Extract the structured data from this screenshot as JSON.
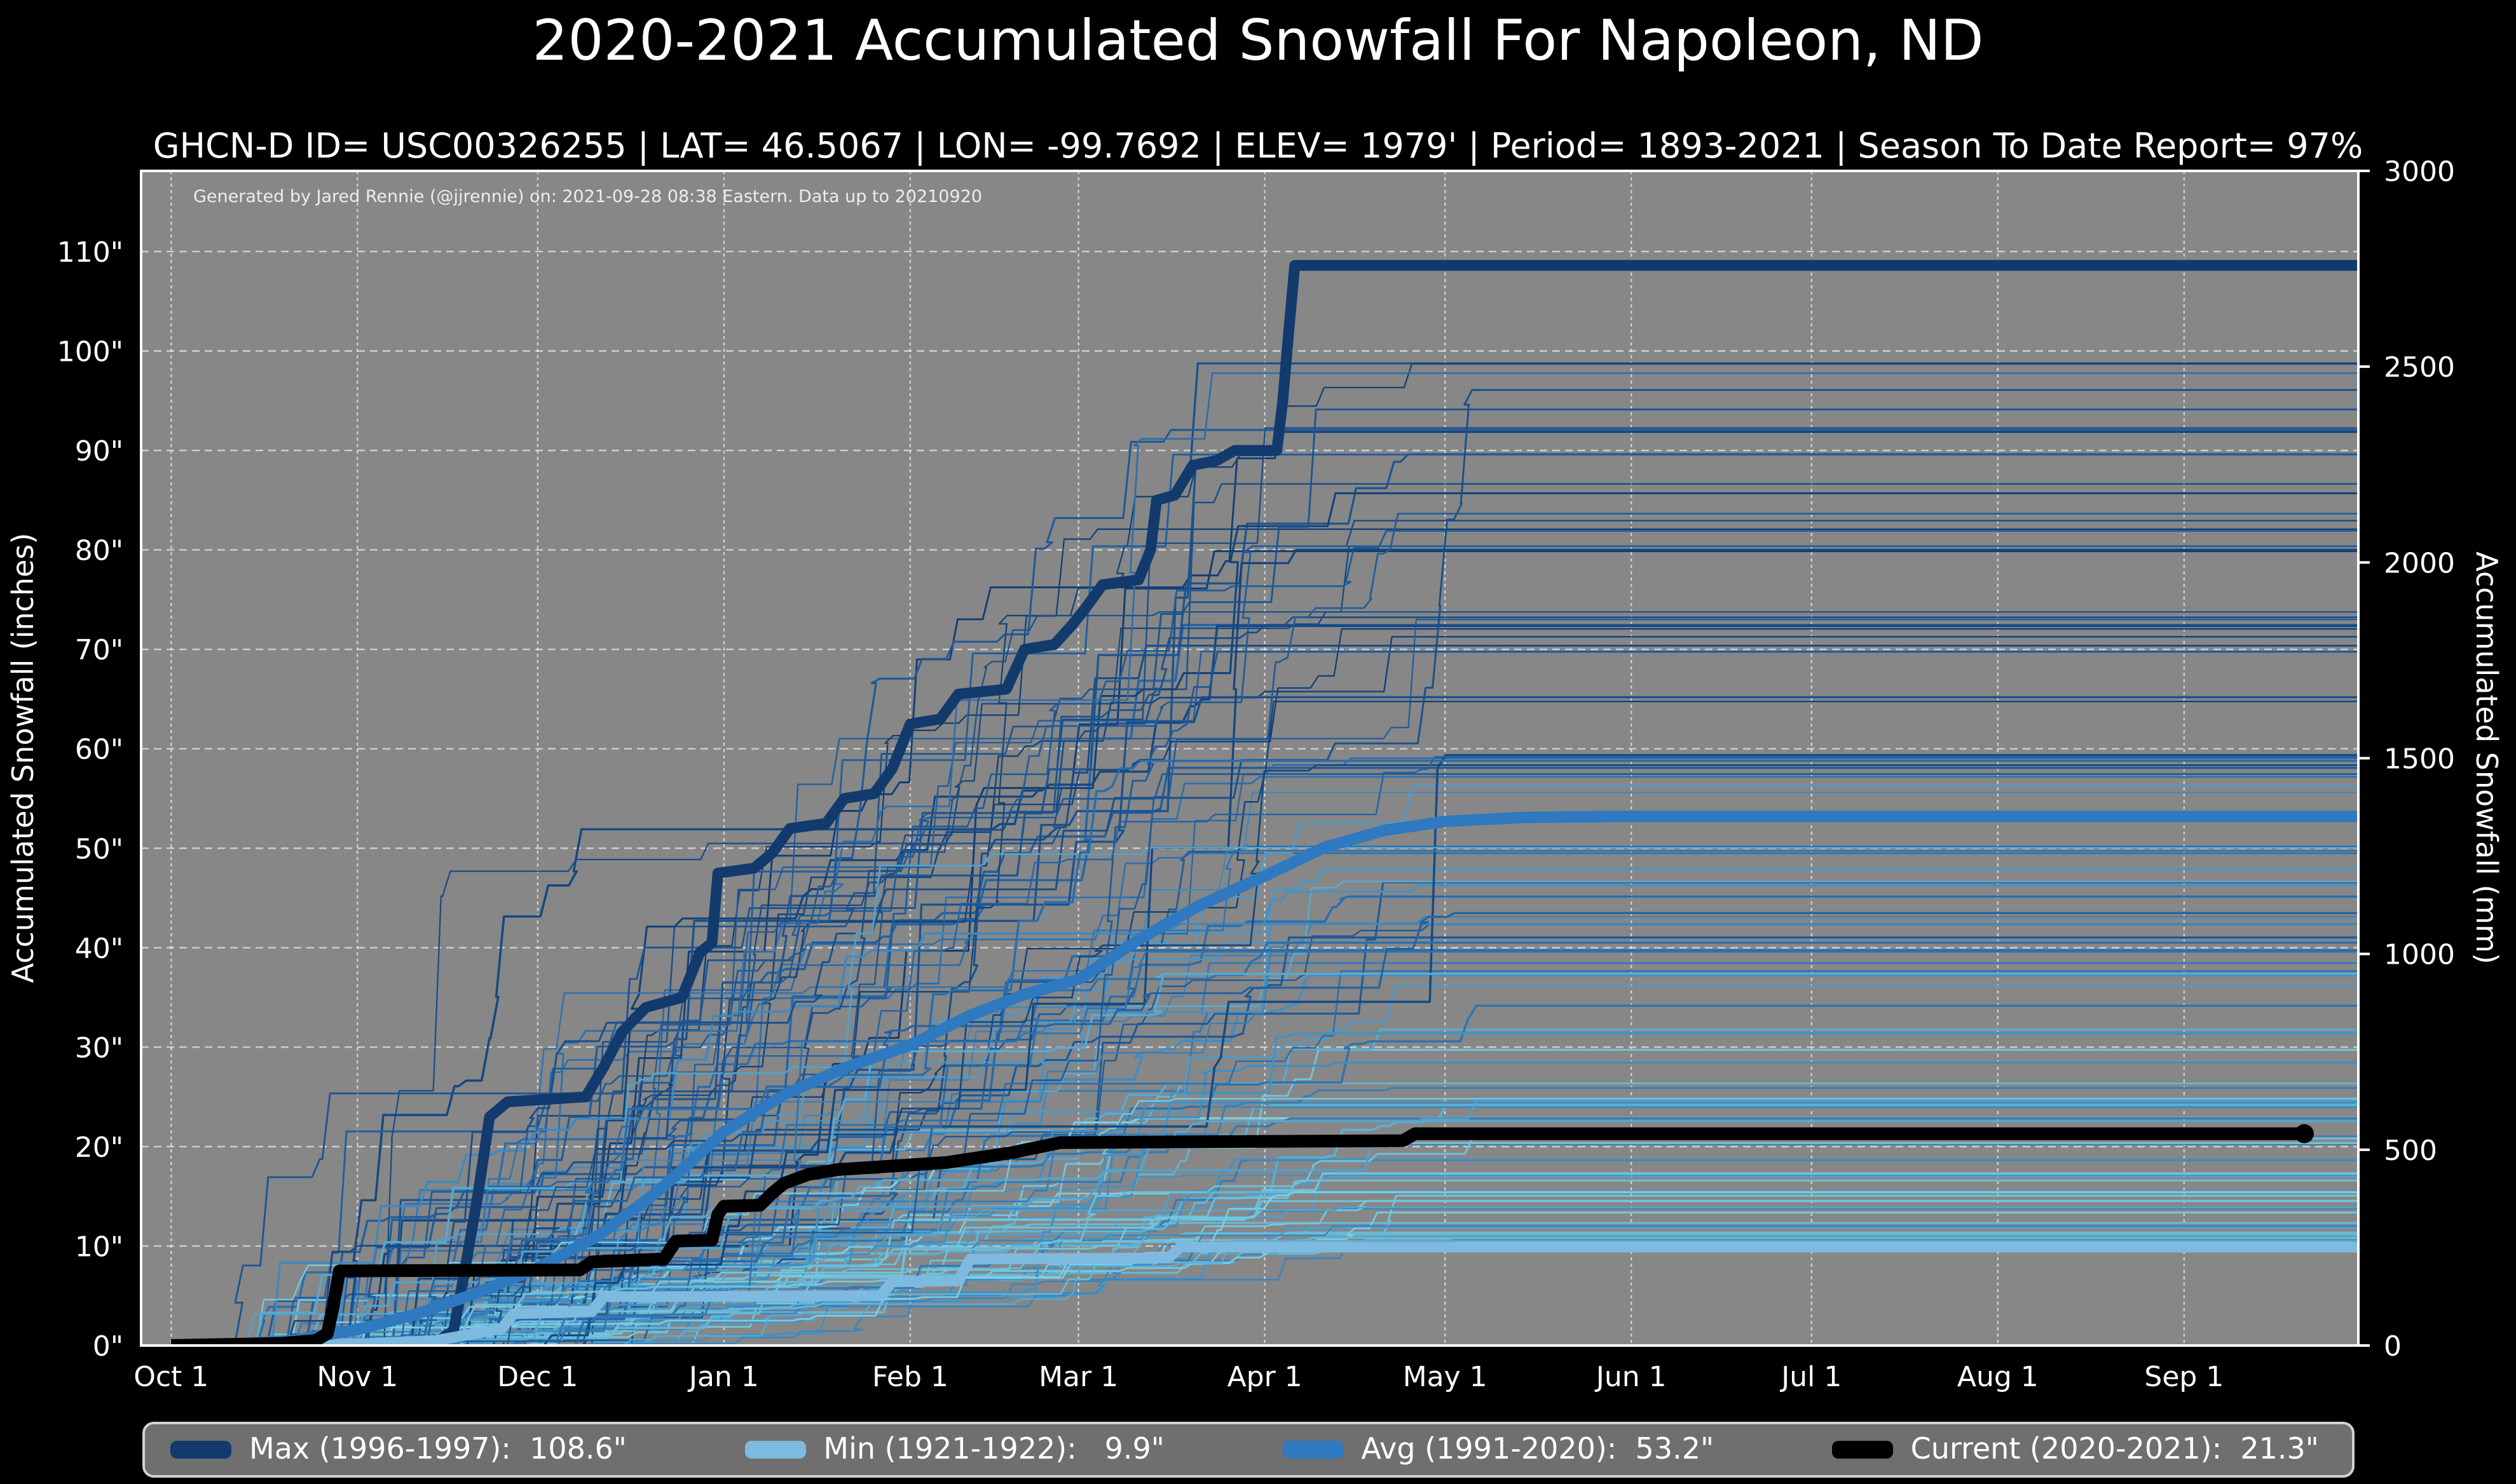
{
  "title": "2020-2021 Accumulated Snowfall For Napoleon, ND",
  "subtitle": "GHCN-D ID= USC00326255 | LAT= 46.5067 | LON= -99.7692 | ELEV= 1979' | Period= 1893-2021 | Season To Date Report= 97%",
  "annotation": "Generated by Jared Rennie (@jjrennie) on: 2021-09-28 08:38 Eastern. Data up to 20210920",
  "axes": {
    "left_label": "Accumulated Snowfall (inches)",
    "right_label": "Accumulated Snowfall (mm)",
    "x_tick_labels": [
      "Oct 1",
      "Nov 1",
      "Dec 1",
      "Jan 1",
      "Feb 1",
      "Mar 1",
      "Apr 1",
      "May 1",
      "Jun 1",
      "Jul 1",
      "Aug 1",
      "Sep 1"
    ],
    "x_tick_days": [
      0,
      31,
      61,
      92,
      123,
      151,
      182,
      212,
      243,
      273,
      304,
      335
    ],
    "x_domain_days": [
      -5,
      364
    ],
    "day_zero": "Oct 1",
    "y_left_tick_labels": [
      "0\"",
      "10\"",
      "20\"",
      "30\"",
      "40\"",
      "50\"",
      "60\"",
      "70\"",
      "80\"",
      "90\"",
      "100\"",
      "110\""
    ],
    "y_left_tick_values": [
      0,
      10,
      20,
      30,
      40,
      50,
      60,
      70,
      80,
      90,
      100,
      110
    ],
    "y_left_domain_inches": [
      0,
      118.11
    ],
    "y_right_tick_labels": [
      "0",
      "500",
      "1000",
      "1500",
      "2000",
      "2500",
      "3000"
    ],
    "y_right_tick_values": [
      0,
      500,
      1000,
      1500,
      2000,
      2500,
      3000
    ],
    "y_right_domain_mm": [
      0,
      3000
    ],
    "grid": true
  },
  "colors": {
    "page_background": "#000000",
    "plot_background": "#878787",
    "grid": "rgba(255,255,255,0.6)",
    "plot_border": "#ffffff",
    "max": "#123a6d",
    "min": "#7ebadf",
    "avg": "#2e79c0",
    "current": "#000000",
    "legend_background": "#6f6f6f",
    "legend_border": "#d2d2d2"
  },
  "legend": {
    "items": [
      {
        "id": "max",
        "label": "Max (1996-1997):  108.6\"",
        "color": "#123a6d"
      },
      {
        "id": "min",
        "label": "Min (1921-1922):   9.9\"",
        "color": "#7ebadf"
      },
      {
        "id": "avg",
        "label": "Avg (1991-2020):  53.2\"",
        "color": "#2e79c0"
      },
      {
        "id": "current",
        "label": "Current (2020-2021):  21.3\"",
        "color": "#000000"
      }
    ]
  },
  "chart_data": {
    "type": "line",
    "x_units": "days since Oct 1",
    "y_units": "inches",
    "title": "2020-2021 Accumulated Snowfall For Napoleon, ND",
    "series": [
      {
        "name": "Max (1996-1997)",
        "total_inches": 108.6,
        "color": "#123a6d",
        "width": 8.5,
        "points": [
          [
            0,
            0
          ],
          [
            44,
            0.3
          ],
          [
            47,
            1.5
          ],
          [
            49,
            8
          ],
          [
            51,
            15
          ],
          [
            53,
            23
          ],
          [
            56,
            24.5
          ],
          [
            69,
            25
          ],
          [
            72,
            28
          ],
          [
            75,
            31.5
          ],
          [
            79,
            34
          ],
          [
            85,
            35
          ],
          [
            88,
            39.5
          ],
          [
            90,
            40.5
          ],
          [
            91,
            47.5
          ],
          [
            97,
            48
          ],
          [
            100,
            49.5
          ],
          [
            103,
            52
          ],
          [
            109,
            52.5
          ],
          [
            112,
            55
          ],
          [
            117,
            55.5
          ],
          [
            120,
            58
          ],
          [
            123,
            62.5
          ],
          [
            128,
            63
          ],
          [
            131,
            65.5
          ],
          [
            139,
            66
          ],
          [
            142,
            70
          ],
          [
            147,
            70.5
          ],
          [
            150,
            72.5
          ],
          [
            152,
            74
          ],
          [
            155,
            76.5
          ],
          [
            161,
            77
          ],
          [
            163,
            80
          ],
          [
            164,
            85
          ],
          [
            167,
            85.5
          ],
          [
            170,
            88.5
          ],
          [
            174,
            89
          ],
          [
            177,
            90
          ],
          [
            184,
            90
          ],
          [
            185,
            95
          ],
          [
            186,
            102
          ],
          [
            187,
            108.6
          ],
          [
            364,
            108.6
          ]
        ]
      },
      {
        "name": "Min (1921-1922)",
        "total_inches": 9.9,
        "color": "#7ebadf",
        "width": 8.5,
        "points": [
          [
            0,
            0
          ],
          [
            33,
            0.2
          ],
          [
            44,
            0.5
          ],
          [
            55,
            1.7
          ],
          [
            57,
            3.2
          ],
          [
            70,
            3.4
          ],
          [
            72,
            4.9
          ],
          [
            118,
            5.0
          ],
          [
            120,
            6.4
          ],
          [
            131,
            6.5
          ],
          [
            133,
            8.7
          ],
          [
            166,
            8.8
          ],
          [
            168,
            9.9
          ],
          [
            364,
            9.9
          ]
        ]
      },
      {
        "name": "Avg (1991-2020)",
        "total_inches": 53.2,
        "color": "#2e79c0",
        "width": 9,
        "points": [
          [
            0,
            0
          ],
          [
            10,
            0.1
          ],
          [
            20,
            0.5
          ],
          [
            31,
            1.6
          ],
          [
            41,
            3.2
          ],
          [
            51,
            5.3
          ],
          [
            61,
            7.8
          ],
          [
            71,
            11
          ],
          [
            81,
            15.5
          ],
          [
            92,
            21.5
          ],
          [
            102,
            25.2
          ],
          [
            112,
            27.9
          ],
          [
            123,
            30.2
          ],
          [
            133,
            33.2
          ],
          [
            142,
            35.3
          ],
          [
            151,
            36.8
          ],
          [
            161,
            40.8
          ],
          [
            171,
            44.2
          ],
          [
            182,
            47.2
          ],
          [
            192,
            50.1
          ],
          [
            202,
            51.8
          ],
          [
            212,
            52.7
          ],
          [
            225,
            53.1
          ],
          [
            240,
            53.2
          ],
          [
            364,
            53.2
          ]
        ]
      },
      {
        "name": "Current (2020-2021)",
        "total_inches": 21.3,
        "color": "#000000",
        "width": 10,
        "endpoint_marker": true,
        "end_day": 355,
        "points": [
          [
            0,
            0
          ],
          [
            18,
            0.2
          ],
          [
            24,
            0.5
          ],
          [
            26,
            1.2
          ],
          [
            27,
            4
          ],
          [
            28,
            7.5
          ],
          [
            68,
            7.6
          ],
          [
            70,
            8.4
          ],
          [
            82,
            8.7
          ],
          [
            84,
            10.5
          ],
          [
            90,
            10.6
          ],
          [
            91,
            13.2
          ],
          [
            92,
            14.0
          ],
          [
            98,
            14.1
          ],
          [
            100,
            15.3
          ],
          [
            102,
            16.3
          ],
          [
            106,
            17.2
          ],
          [
            111,
            17.7
          ],
          [
            129,
            18.4
          ],
          [
            140,
            19.4
          ],
          [
            144,
            19.9
          ],
          [
            148,
            20.4
          ],
          [
            175,
            20.5
          ],
          [
            205,
            20.6
          ],
          [
            207,
            21.3
          ],
          [
            355,
            21.3
          ]
        ]
      }
    ],
    "background_ensemble": {
      "description": "Thin lines: each season 1893-2021 accumulated snowfall (procedurally approximated staircases)",
      "count": 118,
      "seed": 42,
      "total_range_inches": [
        10,
        100
      ],
      "palette": [
        "#0f3b70",
        "#2566a8",
        "#3f8ec4",
        "#62b8d8",
        "#7fd0e2"
      ]
    }
  }
}
